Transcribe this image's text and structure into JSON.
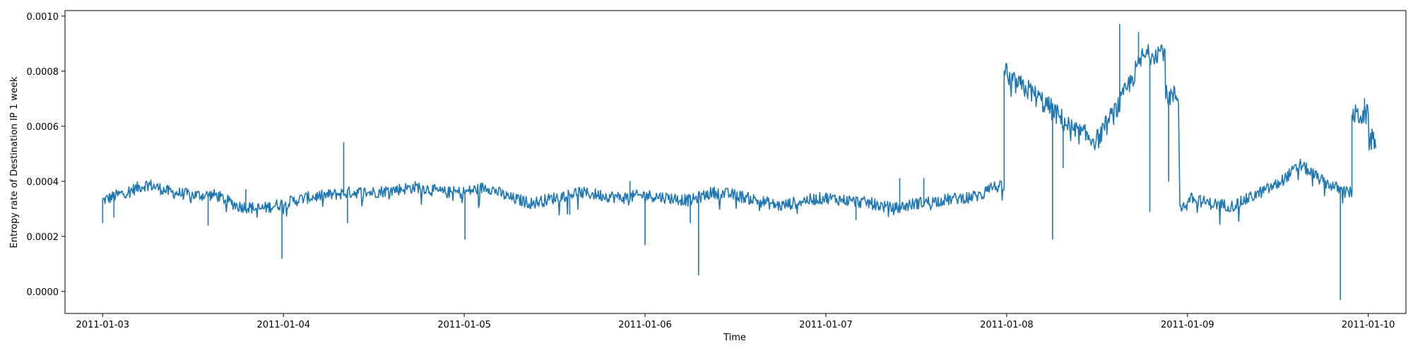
{
  "chart_data": {
    "type": "line",
    "title": "",
    "xlabel": "Time",
    "ylabel": "Entropy rate of Destination IP 1 week",
    "xlim": [
      "2011-01-02T19:00",
      "2011-01-10T05:00"
    ],
    "ylim": [
      -8e-05,
      0.00102
    ],
    "x_ticks": [
      "2011-01-03",
      "2011-01-04",
      "2011-01-05",
      "2011-01-06",
      "2011-01-07",
      "2011-01-08",
      "2011-01-09",
      "2011-01-10"
    ],
    "y_ticks": [
      "0.0000",
      "0.0002",
      "0.0004",
      "0.0006",
      "0.0008",
      "0.0010"
    ],
    "line_color": "#1f77b4",
    "grid": false,
    "series": [
      {
        "x": [
          "2011-01-03T00:00",
          "2011-01-03T03:00",
          "2011-01-03T06:00",
          "2011-01-03T09:00",
          "2011-01-03T12:00",
          "2011-01-03T15:00",
          "2011-01-03T18:00",
          "2011-01-03T21:00",
          "2011-01-04T00:00",
          "2011-01-04T03:00",
          "2011-01-04T06:00",
          "2011-01-04T09:00",
          "2011-01-04T12:00",
          "2011-01-04T15:00",
          "2011-01-04T18:00",
          "2011-01-04T21:00",
          "2011-01-05T00:00",
          "2011-01-05T03:00",
          "2011-01-05T06:00",
          "2011-01-05T09:00",
          "2011-01-05T12:00",
          "2011-01-05T15:00",
          "2011-01-05T18:00",
          "2011-01-05T21:00",
          "2011-01-06T00:00",
          "2011-01-06T03:00",
          "2011-01-06T06:00",
          "2011-01-06T09:00",
          "2011-01-06T12:00",
          "2011-01-06T15:00",
          "2011-01-06T18:00",
          "2011-01-06T21:00",
          "2011-01-07T00:00",
          "2011-01-07T03:00",
          "2011-01-07T06:00",
          "2011-01-07T09:00",
          "2011-01-07T12:00",
          "2011-01-07T15:00",
          "2011-01-07T18:00",
          "2011-01-07T21:00",
          "2011-01-08T00:00",
          "2011-01-08T03:00",
          "2011-01-08T06:00",
          "2011-01-08T09:00",
          "2011-01-08T12:00",
          "2011-01-08T15:00",
          "2011-01-08T18:00",
          "2011-01-08T21:00",
          "2011-01-09T00:00",
          "2011-01-09T03:00",
          "2011-01-09T06:00",
          "2011-01-09T09:00",
          "2011-01-09T12:00",
          "2011-01-09T15:00",
          "2011-01-09T18:00",
          "2011-01-09T21:00",
          "2011-01-10T00:00"
        ],
        "y": [
          0.00033,
          0.00036,
          0.00039,
          0.00036,
          0.00035,
          0.00035,
          0.00031,
          0.0003,
          0.00032,
          0.00034,
          0.00035,
          0.00036,
          0.00036,
          0.00037,
          0.00038,
          0.00036,
          0.00036,
          0.00038,
          0.00034,
          0.00032,
          0.00034,
          0.00036,
          0.00035,
          0.00034,
          0.00035,
          0.00034,
          0.00033,
          0.00036,
          0.00035,
          0.00033,
          0.00031,
          0.00033,
          0.00034,
          0.00033,
          0.00032,
          0.0003,
          0.00032,
          0.00033,
          0.00034,
          0.00035,
          0.00077,
          0.00073,
          0.00066,
          0.00058,
          0.00055,
          0.00068,
          0.00085,
          0.00088,
          0.00034,
          0.00032,
          0.00031,
          0.00035,
          0.00039,
          0.00046,
          0.0004,
          0.00036,
          0.00055
        ],
        "spikes": [
          {
            "x": "2011-01-03T00:00",
            "y": 0.00025
          },
          {
            "x": "2011-01-03T01:30",
            "y": 0.00027
          },
          {
            "x": "2011-01-03T14:00",
            "y": 0.00024
          },
          {
            "x": "2011-01-03T19:00",
            "y": 0.00037
          },
          {
            "x": "2011-01-03T23:50",
            "y": 0.00012
          },
          {
            "x": "2011-01-04T08:00",
            "y": 0.00054
          },
          {
            "x": "2011-01-04T08:30",
            "y": 0.00025
          },
          {
            "x": "2011-01-05T00:10",
            "y": 0.00019
          },
          {
            "x": "2011-01-05T14:00",
            "y": 0.00028
          },
          {
            "x": "2011-01-05T22:00",
            "y": 0.0004
          },
          {
            "x": "2011-01-06T00:00",
            "y": 0.00017
          },
          {
            "x": "2011-01-06T06:00",
            "y": 0.00025
          },
          {
            "x": "2011-01-06T07:10",
            "y": 6e-05
          },
          {
            "x": "2011-01-07T04:00",
            "y": 0.00026
          },
          {
            "x": "2011-01-07T09:50",
            "y": 0.00041
          },
          {
            "x": "2011-01-07T13:00",
            "y": 0.00041
          },
          {
            "x": "2011-01-08T06:10",
            "y": 0.00019
          },
          {
            "x": "2011-01-08T07:30",
            "y": 0.00045
          },
          {
            "x": "2011-01-08T15:00",
            "y": 0.00097
          },
          {
            "x": "2011-01-08T17:30",
            "y": 0.00094
          },
          {
            "x": "2011-01-08T19:00",
            "y": 0.00029
          },
          {
            "x": "2011-01-08T21:30",
            "y": 0.0004
          },
          {
            "x": "2011-01-09T20:20",
            "y": -3e-05
          },
          {
            "x": "2011-01-09T23:30",
            "y": 0.0007
          }
        ],
        "segments_with_drop": [
          {
            "x": "2011-01-07T23:40",
            "from": 0.00038,
            "to": 0.0008
          },
          {
            "x": "2011-01-08T22:55",
            "from": 0.00071,
            "to": 0.00031
          },
          {
            "x": "2011-01-09T21:50",
            "from": 0.00036,
            "to": 0.00064
          }
        ]
      }
    ]
  }
}
